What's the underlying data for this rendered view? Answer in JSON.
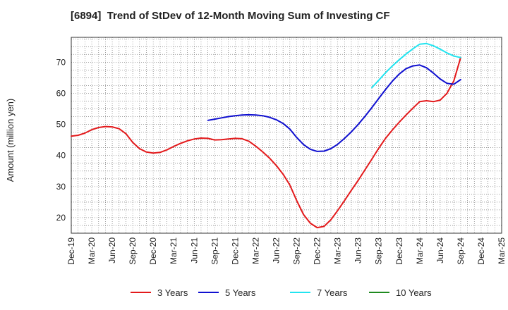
{
  "chart_data": {
    "type": "line",
    "title": "[6894]  Trend of StDev of 12-Month Moving Sum of Investing CF",
    "ylabel": "Amount (million yen)",
    "xlabel": "",
    "ylim": [
      15,
      78
    ],
    "yticks": [
      20,
      30,
      40,
      50,
      60,
      70
    ],
    "grid": true,
    "legend_position": "bottom",
    "x_start": "Dec-19",
    "x_end": "Mar-25",
    "categories": [
      "Dec-19",
      "Mar-20",
      "Jun-20",
      "Sep-20",
      "Dec-20",
      "Mar-21",
      "Jun-21",
      "Sep-21",
      "Dec-21",
      "Mar-22",
      "Jun-22",
      "Sep-22",
      "Dec-22",
      "Mar-23",
      "Jun-23",
      "Sep-23",
      "Dec-23",
      "Mar-24",
      "Jun-24",
      "Sep-24",
      "Dec-24",
      "Mar-25"
    ],
    "series": [
      {
        "name": "3 Years",
        "color": "#e31a1c",
        "x": [
          "Dec-19",
          "Jan-20",
          "Feb-20",
          "Mar-20",
          "Apr-20",
          "May-20",
          "Jun-20",
          "Jul-20",
          "Aug-20",
          "Sep-20",
          "Oct-20",
          "Nov-20",
          "Dec-20",
          "Jan-21",
          "Feb-21",
          "Mar-21",
          "Apr-21",
          "May-21",
          "Jun-21",
          "Jul-21",
          "Aug-21",
          "Sep-21",
          "Oct-21",
          "Nov-21",
          "Dec-21",
          "Jan-22",
          "Feb-22",
          "Mar-22",
          "Apr-22",
          "May-22",
          "Jun-22",
          "Jul-22",
          "Aug-22",
          "Sep-22",
          "Oct-22",
          "Nov-22",
          "Dec-22",
          "Jan-23",
          "Feb-23",
          "Mar-23",
          "Apr-23",
          "May-23",
          "Jun-23",
          "Jul-23",
          "Aug-23",
          "Sep-23",
          "Oct-23",
          "Nov-23",
          "Dec-23",
          "Jan-24",
          "Feb-24",
          "Mar-24",
          "Apr-24",
          "May-24",
          "Jun-24",
          "Jul-24",
          "Aug-24",
          "Sep-24"
        ],
        "values": [
          46.2,
          46.5,
          47.2,
          48.3,
          49.0,
          49.3,
          49.2,
          48.6,
          47.0,
          44.2,
          42.2,
          41.1,
          40.8,
          41.0,
          41.8,
          42.9,
          43.9,
          44.7,
          45.3,
          45.6,
          45.5,
          45.0,
          45.1,
          45.3,
          45.5,
          45.4,
          44.6,
          43.0,
          41.2,
          39.2,
          36.8,
          34.0,
          30.5,
          25.5,
          21.0,
          18.2,
          16.8,
          17.2,
          19.3,
          22.3,
          25.5,
          28.8,
          32.0,
          35.4,
          38.8,
          42.3,
          45.5,
          48.2,
          50.7,
          53.0,
          55.2,
          57.3,
          57.6,
          57.3,
          57.8,
          60.0,
          64.0,
          71.5
        ]
      },
      {
        "name": "5 Years",
        "color": "#1010d0",
        "x": [
          "Aug-21",
          "Sep-21",
          "Oct-21",
          "Nov-21",
          "Dec-21",
          "Jan-22",
          "Feb-22",
          "Mar-22",
          "Apr-22",
          "May-22",
          "Jun-22",
          "Jul-22",
          "Aug-22",
          "Sep-22",
          "Oct-22",
          "Nov-22",
          "Dec-22",
          "Jan-23",
          "Feb-23",
          "Mar-23",
          "Apr-23",
          "May-23",
          "Jun-23",
          "Jul-23",
          "Aug-23",
          "Sep-23",
          "Oct-23",
          "Nov-23",
          "Dec-23",
          "Jan-24",
          "Feb-24",
          "Mar-24",
          "Apr-24",
          "May-24",
          "Jun-24",
          "Jul-24",
          "Aug-24",
          "Sep-24"
        ],
        "values": [
          51.3,
          51.7,
          52.1,
          52.5,
          52.8,
          53.0,
          53.1,
          53.0,
          52.8,
          52.3,
          51.5,
          50.3,
          48.5,
          45.8,
          43.5,
          42.0,
          41.3,
          41.4,
          42.2,
          43.6,
          45.5,
          47.6,
          50.0,
          52.6,
          55.4,
          58.3,
          61.2,
          63.9,
          66.2,
          67.9,
          68.8,
          69.1,
          68.2,
          66.5,
          64.6,
          63.2,
          62.9,
          64.4
        ]
      },
      {
        "name": "7 Years",
        "color": "#22e4f0",
        "x": [
          "Aug-23",
          "Sep-23",
          "Oct-23",
          "Nov-23",
          "Dec-23",
          "Jan-24",
          "Feb-24",
          "Mar-24",
          "Apr-24",
          "May-24",
          "Jun-24",
          "Jul-24",
          "Aug-24",
          "Sep-24"
        ],
        "values": [
          61.8,
          64.2,
          66.6,
          68.8,
          70.8,
          72.6,
          74.3,
          75.8,
          76.0,
          75.3,
          74.2,
          73.0,
          72.0,
          71.5
        ]
      },
      {
        "name": "10 Years",
        "color": "#1f8a1f",
        "x": [],
        "values": []
      }
    ]
  }
}
